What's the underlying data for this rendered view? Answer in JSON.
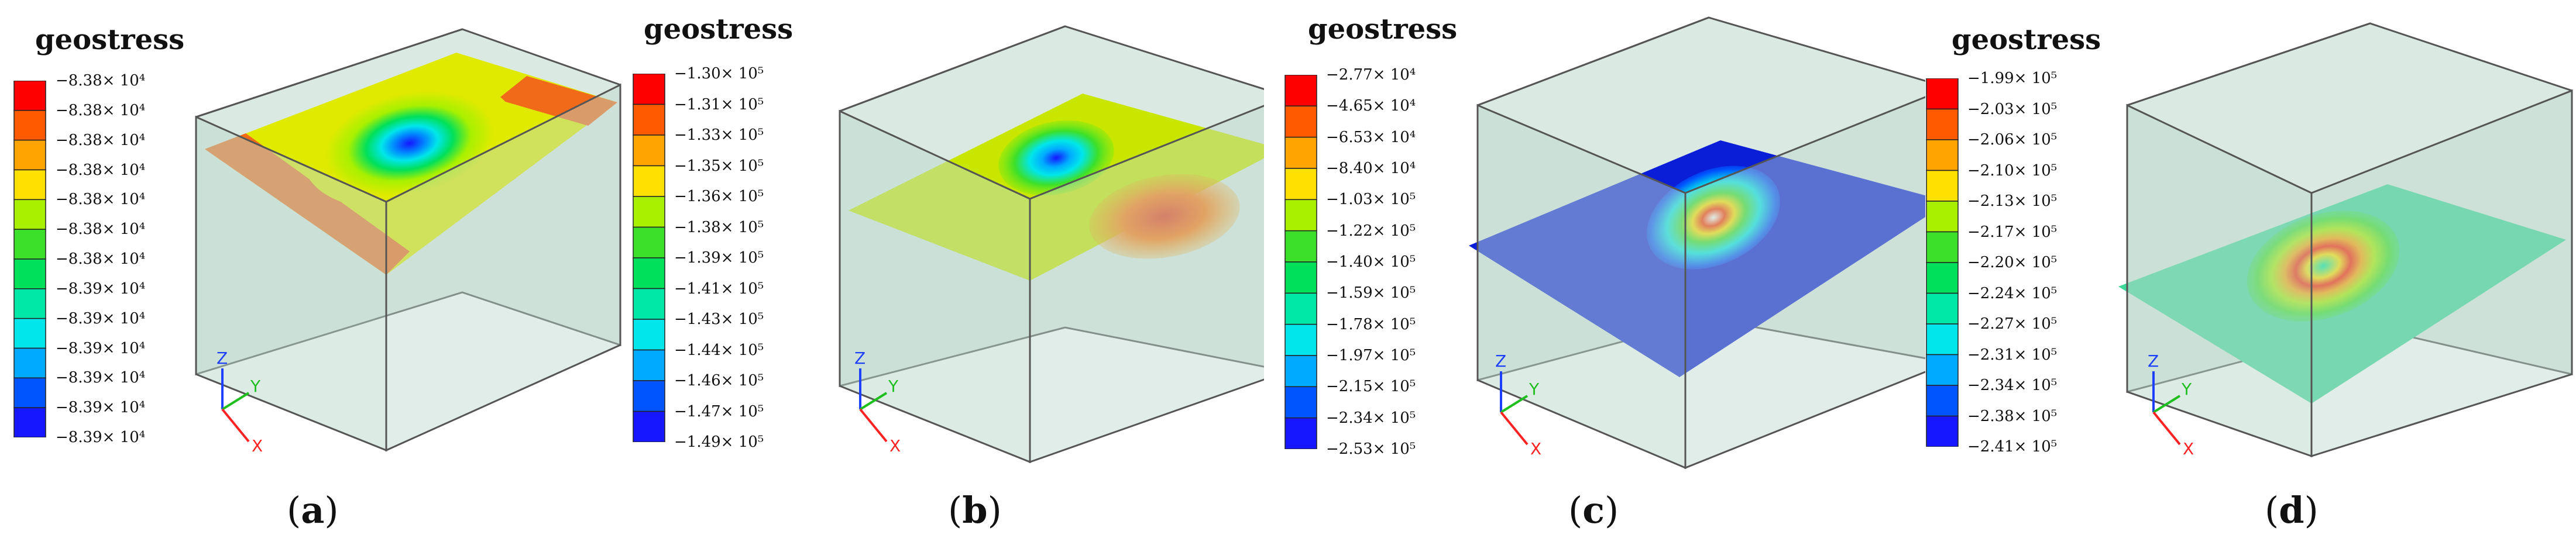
{
  "colors": {
    "legend": [
      "#ff0000",
      "#ff5a00",
      "#ffa400",
      "#ffe000",
      "#a8f000",
      "#3ce02a",
      "#00e05a",
      "#00e8a8",
      "#00e6ea",
      "#00aaff",
      "#0055ff",
      "#1616ff"
    ],
    "box_face": "#bcd8cc",
    "box_edge": "#555555",
    "axis_z": "#1f3fff",
    "axis_y": "#1fbf1f",
    "axis_x": "#ff2222"
  },
  "panels": [
    {
      "label": "a",
      "legend_title": "geostress",
      "legend_labels": [
        "−8.38× 10⁴",
        "−8.38× 10⁴",
        "−8.38× 10⁴",
        "−8.38× 10⁴",
        "−8.38× 10⁴",
        "−8.38× 10⁴",
        "−8.38× 10⁴",
        "−8.39× 10⁴",
        "−8.39× 10⁴",
        "−8.39× 10⁴",
        "−8.39× 10⁴",
        "−8.39× 10⁴",
        "−8.39× 10⁴"
      ],
      "axis_labels": {
        "z": "Z",
        "y": "Y",
        "x": "X"
      }
    },
    {
      "label": "b",
      "legend_title": "geostress",
      "legend_labels": [
        "−1.30× 10⁵",
        "−1.31× 10⁵",
        "−1.33× 10⁵",
        "−1.35× 10⁵",
        "−1.36× 10⁵",
        "−1.38× 10⁵",
        "−1.39× 10⁵",
        "−1.41× 10⁵",
        "−1.43× 10⁵",
        "−1.44× 10⁵",
        "−1.46× 10⁵",
        "−1.47× 10⁵",
        "−1.49× 10⁵"
      ],
      "axis_labels": {
        "z": "Z",
        "y": "Y",
        "x": "X"
      }
    },
    {
      "label": "c",
      "legend_title": "geostress",
      "legend_labels": [
        "−2.77× 10⁴",
        "−4.65× 10⁴",
        "−6.53× 10⁴",
        "−8.40× 10⁴",
        "−1.03× 10⁵",
        "−1.22× 10⁵",
        "−1.40× 10⁵",
        "−1.59× 10⁵",
        "−1.78× 10⁵",
        "−1.97× 10⁵",
        "−2.15× 10⁵",
        "−2.34× 10⁵",
        "−2.53× 10⁵"
      ],
      "axis_labels": {
        "z": "Z",
        "y": "Y",
        "x": "X"
      }
    },
    {
      "label": "d",
      "legend_title": "geostress",
      "legend_labels": [
        "−1.99× 10⁵",
        "−2.03× 10⁵",
        "−2.06× 10⁵",
        "−2.10× 10⁵",
        "−2.13× 10⁵",
        "−2.17× 10⁵",
        "−2.20× 10⁵",
        "−2.24× 10⁵",
        "−2.27× 10⁵",
        "−2.31× 10⁵",
        "−2.34× 10⁵",
        "−2.38× 10⁵",
        "−2.41× 10⁵"
      ],
      "axis_labels": {
        "z": "Z",
        "y": "Y",
        "x": "X"
      }
    }
  ]
}
